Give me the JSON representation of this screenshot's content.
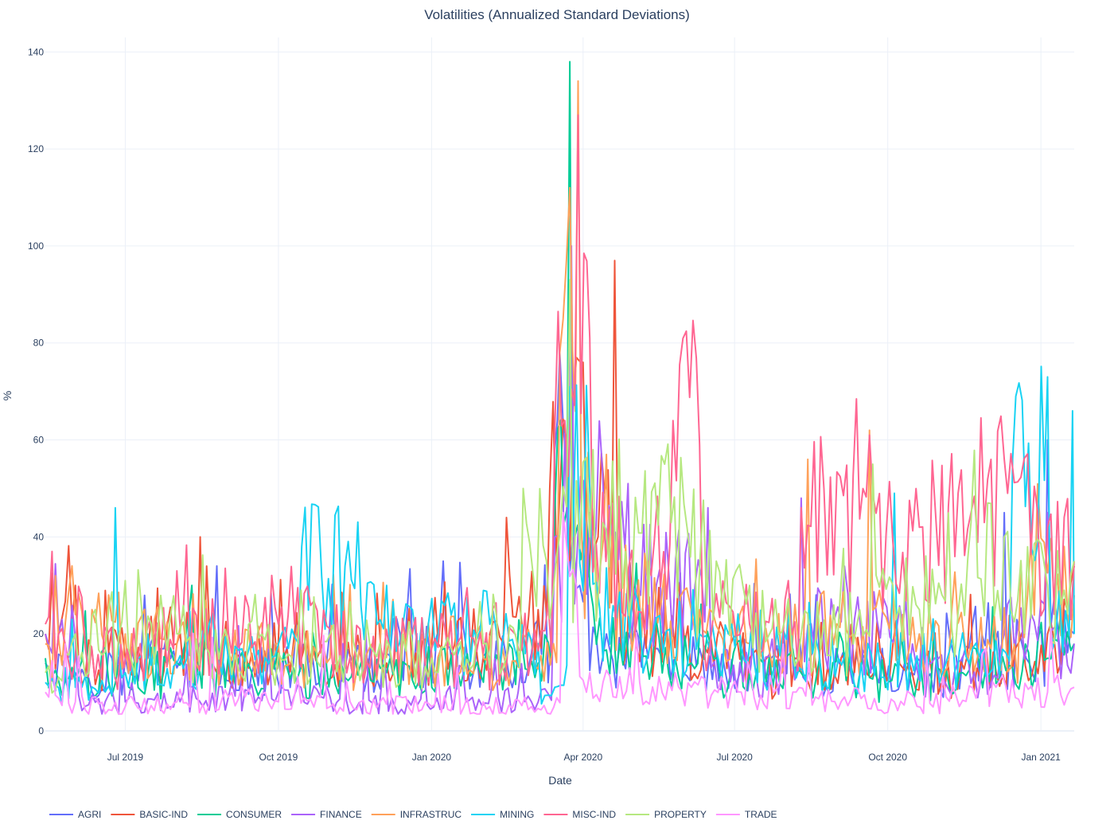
{
  "chart_data": {
    "type": "line",
    "title": "Volatilities (Annualized Standard Deviations)",
    "xlabel": "Date",
    "ylabel": "%",
    "x_range": [
      "2019-05-14",
      "2021-01-21"
    ],
    "ylim": [
      0,
      143
    ],
    "x_ticks": [
      {
        "date": "2019-07-01",
        "label": "Jul 2019"
      },
      {
        "date": "2019-10-01",
        "label": "Oct 2019"
      },
      {
        "date": "2020-01-01",
        "label": "Jan 2020"
      },
      {
        "date": "2020-04-01",
        "label": "Apr 2020"
      },
      {
        "date": "2020-07-01",
        "label": "Jul 2020"
      },
      {
        "date": "2020-10-01",
        "label": "Oct 2020"
      },
      {
        "date": "2021-01-01",
        "label": "Jan 2021"
      }
    ],
    "y_ticks": [
      0,
      20,
      40,
      60,
      80,
      100,
      120,
      140
    ],
    "grid": true,
    "legend_position": "bottom-left",
    "series": [
      {
        "name": "AGRI",
        "color": "#636efa",
        "points": [
          [
            "2019-05-14",
            14
          ],
          [
            "2019-06-01",
            12
          ],
          [
            "2019-07-01",
            15
          ],
          [
            "2019-08-01",
            13
          ],
          [
            "2019-08-25",
            34
          ],
          [
            "2019-09-15",
            12
          ],
          [
            "2019-10-10",
            14
          ],
          [
            "2019-11-10",
            13
          ],
          [
            "2019-12-05",
            16
          ],
          [
            "2020-01-08",
            35
          ],
          [
            "2020-02-05",
            15
          ],
          [
            "2020-03-01",
            16
          ],
          [
            "2020-03-15",
            58
          ],
          [
            "2020-03-18",
            78
          ],
          [
            "2020-03-22",
            55
          ],
          [
            "2020-03-30",
            30
          ],
          [
            "2020-04-15",
            20
          ],
          [
            "2020-05-10",
            15
          ],
          [
            "2020-06-10",
            17
          ],
          [
            "2020-07-05",
            13
          ],
          [
            "2020-08-15",
            15
          ],
          [
            "2020-09-20",
            12
          ],
          [
            "2020-10-15",
            12
          ],
          [
            "2020-11-15",
            15
          ],
          [
            "2020-12-10",
            45
          ],
          [
            "2020-12-25",
            14
          ],
          [
            "2021-01-05",
            60
          ],
          [
            "2021-01-21",
            20
          ]
        ]
      },
      {
        "name": "BASIC-IND",
        "color": "#ef553b",
        "points": [
          [
            "2019-05-14",
            20
          ],
          [
            "2019-06-01",
            30
          ],
          [
            "2019-07-01",
            15
          ],
          [
            "2019-08-01",
            18
          ],
          [
            "2019-08-15",
            40
          ],
          [
            "2019-09-15",
            16
          ],
          [
            "2019-10-10",
            18
          ],
          [
            "2019-11-10",
            15
          ],
          [
            "2019-12-05",
            14
          ],
          [
            "2020-01-05",
            18
          ],
          [
            "2020-02-05",
            20
          ],
          [
            "2020-02-15",
            44
          ],
          [
            "2020-03-05",
            25
          ],
          [
            "2020-03-12",
            50
          ],
          [
            "2020-03-22",
            60
          ],
          [
            "2020-03-28",
            77
          ],
          [
            "2020-04-01",
            76
          ],
          [
            "2020-04-10",
            40
          ],
          [
            "2020-04-20",
            97
          ],
          [
            "2020-05-01",
            25
          ],
          [
            "2020-06-01",
            18
          ],
          [
            "2020-07-10",
            15
          ],
          [
            "2020-08-10",
            12
          ],
          [
            "2020-09-15",
            14
          ],
          [
            "2020-10-10",
            13
          ],
          [
            "2020-11-10",
            12
          ],
          [
            "2020-12-15",
            13
          ],
          [
            "2021-01-05",
            20
          ],
          [
            "2021-01-21",
            34
          ]
        ]
      },
      {
        "name": "CONSUMER",
        "color": "#00cc96",
        "points": [
          [
            "2019-05-14",
            15
          ],
          [
            "2019-06-01",
            10
          ],
          [
            "2019-07-01",
            12
          ],
          [
            "2019-08-01",
            14
          ],
          [
            "2019-08-10",
            30
          ],
          [
            "2019-09-15",
            12
          ],
          [
            "2019-10-10",
            13
          ],
          [
            "2019-11-10",
            11
          ],
          [
            "2019-12-05",
            12
          ],
          [
            "2020-01-05",
            14
          ],
          [
            "2020-02-05",
            13
          ],
          [
            "2020-03-05",
            14
          ],
          [
            "2020-03-15",
            45
          ],
          [
            "2020-03-24",
            138
          ],
          [
            "2020-03-27",
            40
          ],
          [
            "2020-04-05",
            30
          ],
          [
            "2020-05-05",
            20
          ],
          [
            "2020-06-05",
            14
          ],
          [
            "2020-07-10",
            12
          ],
          [
            "2020-08-15",
            12
          ],
          [
            "2020-09-20",
            11
          ],
          [
            "2020-10-15",
            10
          ],
          [
            "2020-11-15",
            12
          ],
          [
            "2020-12-15",
            13
          ],
          [
            "2021-01-05",
            15
          ],
          [
            "2021-01-21",
            18
          ]
        ]
      },
      {
        "name": "FINANCE",
        "color": "#ab63fa",
        "points": [
          [
            "2019-05-14",
            20
          ],
          [
            "2019-06-01",
            19
          ],
          [
            "2019-07-01",
            6
          ],
          [
            "2019-08-01",
            8
          ],
          [
            "2019-09-01",
            7
          ],
          [
            "2019-10-01",
            8
          ],
          [
            "2019-11-01",
            7
          ],
          [
            "2019-12-10",
            5
          ],
          [
            "2020-01-10",
            8
          ],
          [
            "2020-02-10",
            7
          ],
          [
            "2020-03-01",
            6
          ],
          [
            "2020-03-15",
            40
          ],
          [
            "2020-03-25",
            100
          ],
          [
            "2020-04-05",
            45
          ],
          [
            "2020-04-28",
            51
          ],
          [
            "2020-05-15",
            30
          ],
          [
            "2020-06-15",
            46
          ],
          [
            "2020-07-10",
            12
          ],
          [
            "2020-08-10",
            48
          ],
          [
            "2020-09-15",
            20
          ],
          [
            "2020-10-10",
            22
          ],
          [
            "2020-11-10",
            12
          ],
          [
            "2020-12-10",
            20
          ],
          [
            "2021-01-05",
            45
          ],
          [
            "2021-01-21",
            18
          ]
        ]
      },
      {
        "name": "INFRASTRUC",
        "color": "#ffa15a",
        "points": [
          [
            "2019-05-14",
            18
          ],
          [
            "2019-05-20",
            32
          ],
          [
            "2019-06-01",
            24
          ],
          [
            "2019-07-01",
            20
          ],
          [
            "2019-08-01",
            18
          ],
          [
            "2019-09-01",
            16
          ],
          [
            "2019-10-01",
            18
          ],
          [
            "2019-11-01",
            15
          ],
          [
            "2019-12-01",
            17
          ],
          [
            "2020-01-01",
            16
          ],
          [
            "2020-02-01",
            15
          ],
          [
            "2020-03-01",
            18
          ],
          [
            "2020-03-18",
            78
          ],
          [
            "2020-03-24",
            112
          ],
          [
            "2020-03-29",
            134
          ],
          [
            "2020-04-08",
            40
          ],
          [
            "2020-04-15",
            57
          ],
          [
            "2020-05-10",
            30
          ],
          [
            "2020-06-10",
            25
          ],
          [
            "2020-07-10",
            18
          ],
          [
            "2020-08-14",
            56
          ],
          [
            "2020-09-10",
            20
          ],
          [
            "2020-09-20",
            62
          ],
          [
            "2020-10-20",
            20
          ],
          [
            "2020-11-20",
            18
          ],
          [
            "2020-12-20",
            35
          ],
          [
            "2021-01-21",
            28
          ]
        ]
      },
      {
        "name": "MINING",
        "color": "#19d3f3",
        "points": [
          [
            "2019-05-14",
            10
          ],
          [
            "2019-06-01",
            9
          ],
          [
            "2019-06-25",
            46
          ],
          [
            "2019-07-01",
            12
          ],
          [
            "2019-08-01",
            14
          ],
          [
            "2019-09-01",
            15
          ],
          [
            "2019-10-15",
            38
          ],
          [
            "2019-11-10",
            34
          ],
          [
            "2019-12-05",
            30
          ],
          [
            "2020-01-05",
            20
          ],
          [
            "2020-02-05",
            22
          ],
          [
            "2020-03-05",
            18
          ],
          [
            "2020-03-15",
            9
          ],
          [
            "2020-03-24",
            71
          ],
          [
            "2020-04-05",
            50
          ],
          [
            "2020-05-05",
            25
          ],
          [
            "2020-06-10",
            20
          ],
          [
            "2020-07-05",
            17
          ],
          [
            "2020-08-05",
            15
          ],
          [
            "2020-09-15",
            14
          ],
          [
            "2020-10-05",
            49
          ],
          [
            "2020-11-05",
            14
          ],
          [
            "2020-12-15",
            56
          ],
          [
            "2021-01-05",
            73
          ],
          [
            "2021-01-10",
            20
          ],
          [
            "2021-01-20",
            66
          ],
          [
            "2021-01-21",
            20
          ]
        ]
      },
      {
        "name": "MISC-IND",
        "color": "#ff6692",
        "points": [
          [
            "2019-05-14",
            22
          ],
          [
            "2019-05-18",
            37
          ],
          [
            "2019-06-01",
            15
          ],
          [
            "2019-07-10",
            18
          ],
          [
            "2019-08-01",
            33
          ],
          [
            "2019-09-01",
            20
          ],
          [
            "2019-10-01",
            22
          ],
          [
            "2019-11-01",
            21
          ],
          [
            "2019-12-01",
            18
          ],
          [
            "2020-01-01",
            17
          ],
          [
            "2020-02-01",
            16
          ],
          [
            "2020-03-01",
            15
          ],
          [
            "2020-03-15",
            62
          ],
          [
            "2020-03-29",
            127
          ],
          [
            "2020-04-05",
            81
          ],
          [
            "2020-05-10",
            35
          ],
          [
            "2020-05-25",
            64
          ],
          [
            "2020-06-10",
            59
          ],
          [
            "2020-07-10",
            22
          ],
          [
            "2020-08-10",
            46
          ],
          [
            "2020-09-20",
            61
          ],
          [
            "2020-10-20",
            42
          ],
          [
            "2020-11-20",
            45
          ],
          [
            "2020-12-10",
            56
          ],
          [
            "2021-01-05",
            42
          ],
          [
            "2021-01-21",
            35
          ]
        ]
      },
      {
        "name": "PROPERTY",
        "color": "#b6e880",
        "points": [
          [
            "2019-05-14",
            12
          ],
          [
            "2019-06-01",
            20
          ],
          [
            "2019-07-01",
            31
          ],
          [
            "2019-08-01",
            20
          ],
          [
            "2019-09-01",
            18
          ],
          [
            "2019-10-01",
            16
          ],
          [
            "2019-11-01",
            20
          ],
          [
            "2019-12-01",
            18
          ],
          [
            "2020-01-01",
            15
          ],
          [
            "2020-02-01",
            18
          ],
          [
            "2020-02-25",
            50
          ],
          [
            "2020-03-10",
            35
          ],
          [
            "2020-03-24",
            93
          ],
          [
            "2020-04-05",
            40
          ],
          [
            "2020-05-20",
            55
          ],
          [
            "2020-06-20",
            35
          ],
          [
            "2020-07-10",
            30
          ],
          [
            "2020-08-10",
            20
          ],
          [
            "2020-09-22",
            55
          ],
          [
            "2020-10-20",
            25
          ],
          [
            "2020-11-20",
            43
          ],
          [
            "2020-12-10",
            40
          ],
          [
            "2021-01-05",
            30
          ],
          [
            "2021-01-21",
            35
          ]
        ]
      },
      {
        "name": "TRADE",
        "color": "#ff97ff",
        "points": [
          [
            "2019-05-14",
            8
          ],
          [
            "2019-06-01",
            6
          ],
          [
            "2019-07-01",
            5
          ],
          [
            "2019-08-01",
            6
          ],
          [
            "2019-09-01",
            7
          ],
          [
            "2019-10-01",
            6
          ],
          [
            "2019-11-01",
            5
          ],
          [
            "2019-12-01",
            6
          ],
          [
            "2020-01-01",
            5
          ],
          [
            "2020-02-01",
            6
          ],
          [
            "2020-03-01",
            5
          ],
          [
            "2020-03-20",
            45
          ],
          [
            "2020-03-28",
            30
          ],
          [
            "2020-04-05",
            12
          ],
          [
            "2020-05-05",
            10
          ],
          [
            "2020-06-05",
            9
          ],
          [
            "2020-07-05",
            8
          ],
          [
            "2020-08-05",
            8
          ],
          [
            "2020-09-05",
            7
          ],
          [
            "2020-10-05",
            6
          ],
          [
            "2020-11-05",
            7
          ],
          [
            "2020-12-05",
            9
          ],
          [
            "2021-01-05",
            8
          ],
          [
            "2021-01-21",
            9
          ]
        ]
      }
    ]
  }
}
